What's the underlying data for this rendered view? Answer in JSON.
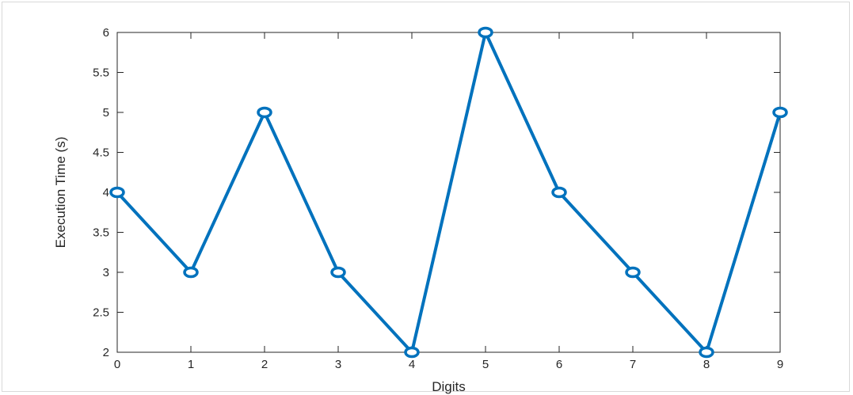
{
  "chart_data": {
    "type": "line",
    "title": "",
    "xlabel": "Digits",
    "ylabel": "Execution Time (s)",
    "x": [
      0,
      1,
      2,
      3,
      4,
      5,
      6,
      7,
      8,
      9
    ],
    "xlim": [
      0,
      9
    ],
    "ylim": [
      2,
      6
    ],
    "x_ticks": [
      "0",
      "1",
      "2",
      "3",
      "4",
      "5",
      "6",
      "7",
      "8",
      "9"
    ],
    "y_ticks": [
      "2",
      "2.5",
      "3",
      "3.5",
      "4",
      "4.5",
      "5",
      "5.5",
      "6"
    ],
    "series": [
      {
        "values": [
          4,
          3,
          5,
          3,
          2,
          6,
          4,
          3,
          2,
          5
        ],
        "color": "#0072bd",
        "marker": "circle"
      }
    ],
    "grid": false,
    "legend": "none",
    "box": true
  }
}
